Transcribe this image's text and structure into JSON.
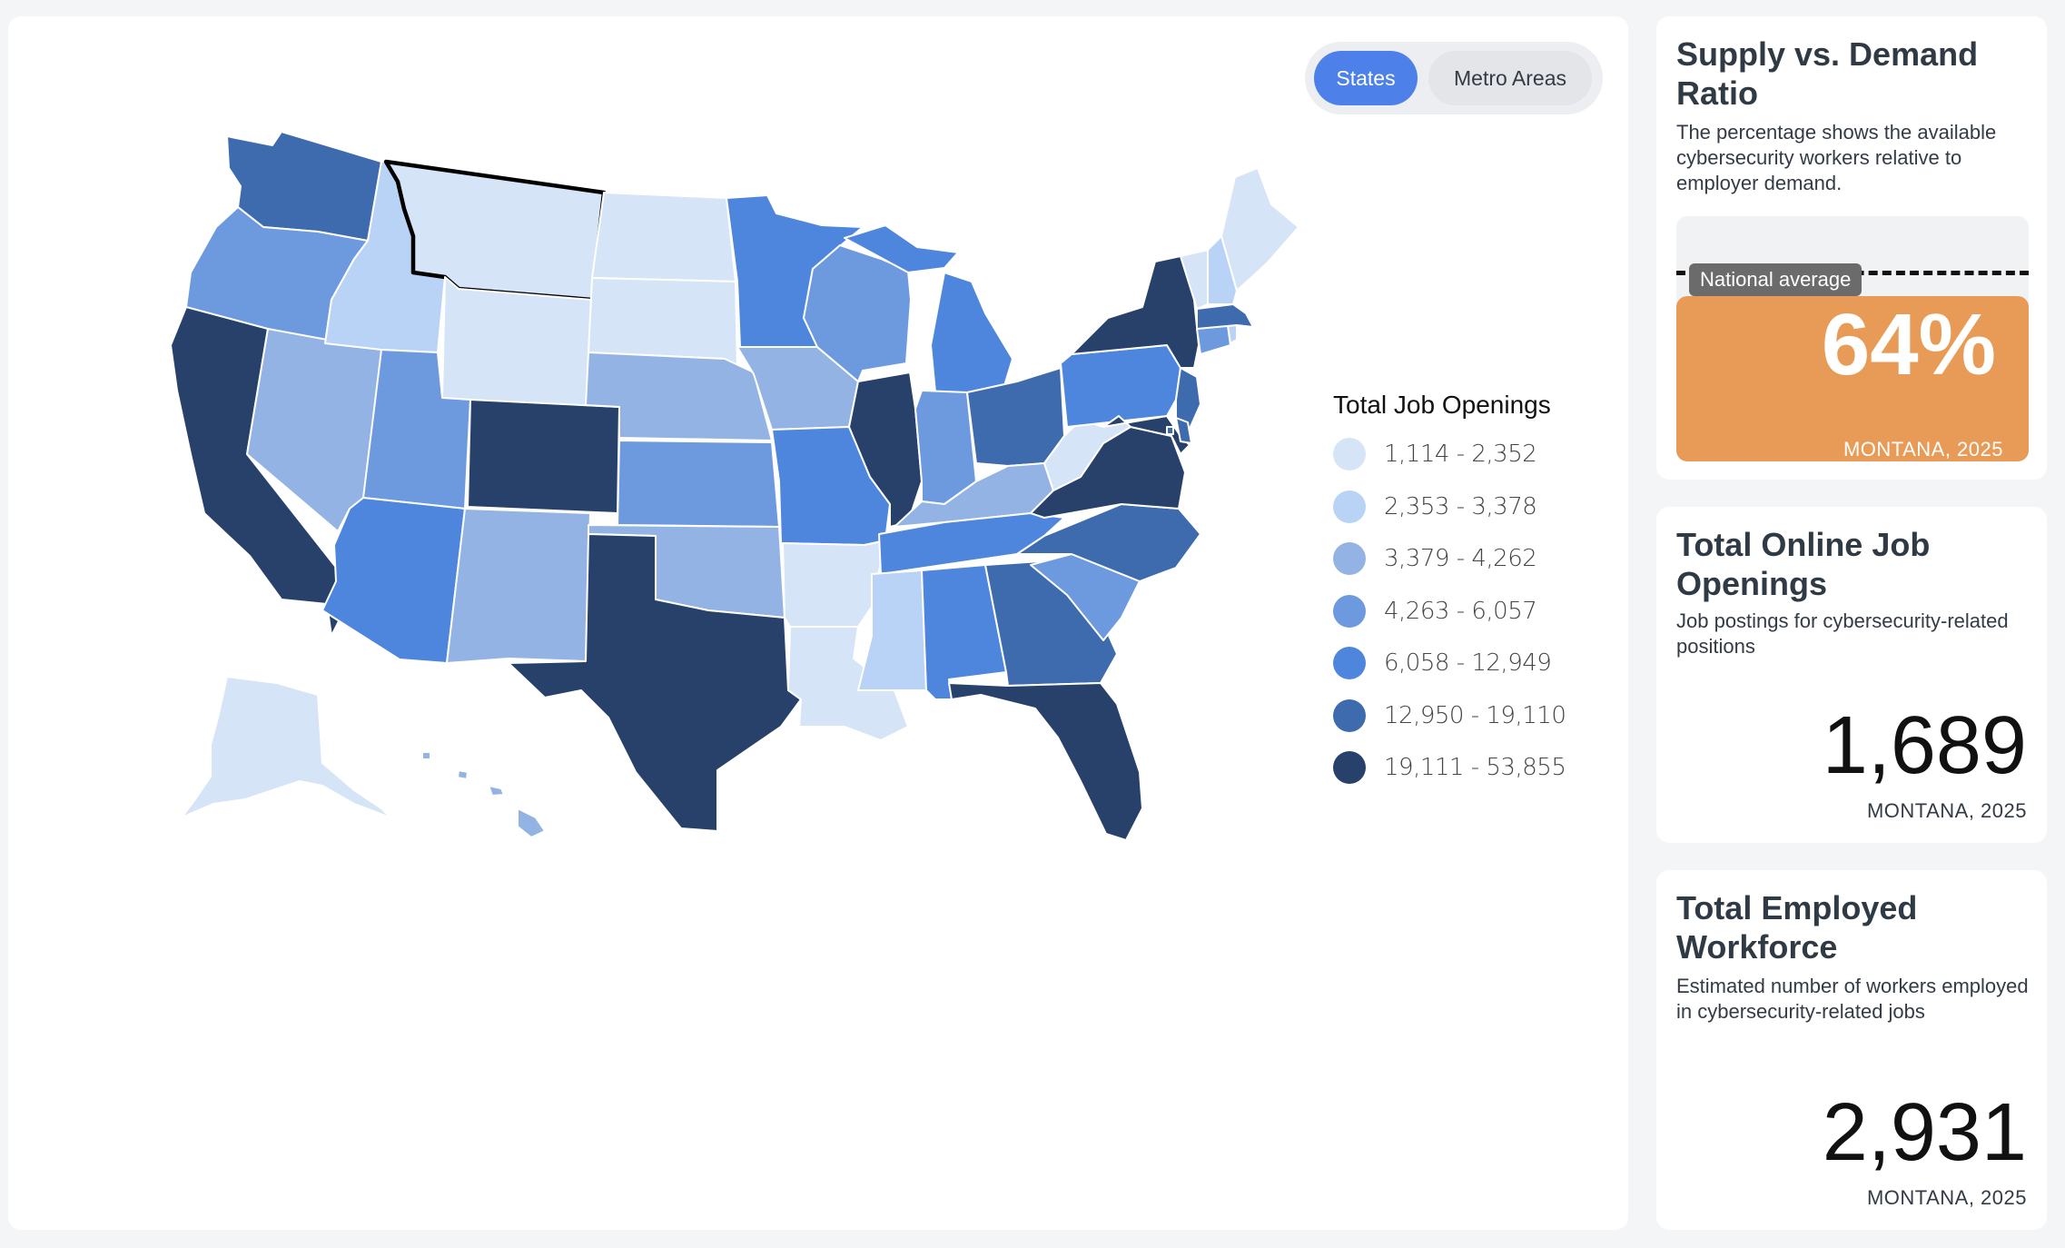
{
  "toggle": {
    "states_label": "States",
    "metro_label": "Metro Areas",
    "selected": "States"
  },
  "legend": {
    "title": "Total Job Openings",
    "items": [
      {
        "label": "1,114 - 2,352",
        "color": "#d6e4f7"
      },
      {
        "label": "2,353 - 3,378",
        "color": "#b9d3f6"
      },
      {
        "label": "3,379 - 4,262",
        "color": "#93b3e4"
      },
      {
        "label": "4,263 - 6,057",
        "color": "#6d9ade"
      },
      {
        "label": "6,058 - 12,949",
        "color": "#4d86dc"
      },
      {
        "label": "12,950 - 19,110",
        "color": "#3e6aae"
      },
      {
        "label": "19,111 - 53,855",
        "color": "#27416b"
      }
    ]
  },
  "map": {
    "selected_state": "Montana"
  },
  "supply_demand": {
    "title": "Supply vs. Demand Ratio",
    "description": "The percentage shows the available cybersecurity workers relative to employer demand.",
    "national_average_label": "National average",
    "value": "64%",
    "subtitle": "MONTANA, 2025",
    "fill_color": "#e89b56"
  },
  "job_openings": {
    "title": "Total Online Job Openings",
    "description": "Job postings for cybersecurity-related positions",
    "value": "1,689",
    "subtitle": "MONTANA, 2025"
  },
  "workforce": {
    "title": "Total Employed Workforce",
    "description": "Estimated number of workers employed in cybersecurity-related jobs",
    "value": "2,931",
    "subtitle": "MONTANA, 2025"
  }
}
